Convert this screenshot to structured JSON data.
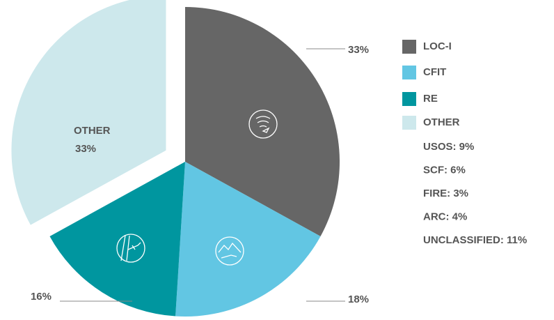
{
  "chart_data": {
    "type": "pie",
    "categories": [
      "LOC-I",
      "CFIT",
      "RE",
      "OTHER"
    ],
    "values": [
      33,
      18,
      16,
      33
    ],
    "value_labels": [
      "33%",
      "18%",
      "16%",
      "33%"
    ],
    "colors": [
      "#666666",
      "#62c6e3",
      "#00969f",
      "#cde8ec"
    ],
    "exploded": [
      false,
      false,
      false,
      true
    ],
    "legend": "right",
    "other_breakdown": [
      "USOS: 9%",
      "SCF: 6%",
      "FIRE: 3%",
      "ARC: 4%",
      "UNCLASSIFIED: 11%"
    ]
  }
}
